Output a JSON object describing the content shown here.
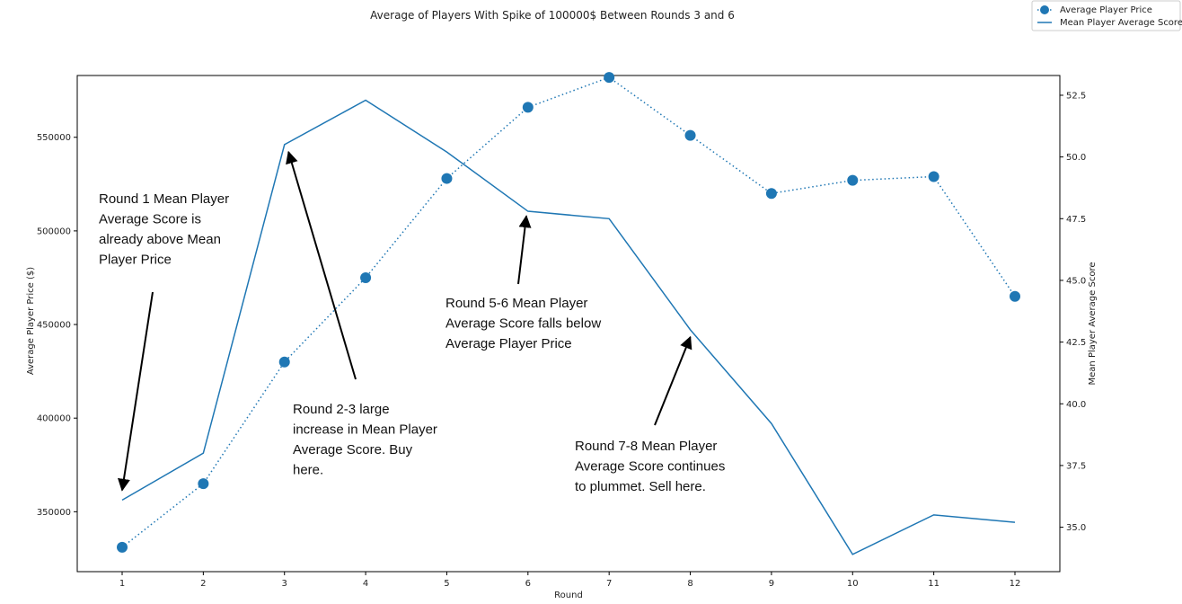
{
  "chart_data": {
    "type": "line",
    "title": "Average of Players With Spike of 100000$ Between Rounds 3 and 6",
    "xlabel": "Round",
    "ylabel_left": "Average Player Price ($)",
    "ylabel_right": "Mean Player Average Score",
    "x": [
      1,
      2,
      3,
      4,
      5,
      6,
      7,
      8,
      9,
      10,
      11,
      12
    ],
    "x_ticks": [
      "1",
      "2",
      "3",
      "4",
      "5",
      "6",
      "7",
      "8",
      "9",
      "10",
      "11",
      "12"
    ],
    "y_left_ticks": [
      "350000",
      "400000",
      "450000",
      "500000",
      "550000"
    ],
    "y_right_ticks": [
      "35.0",
      "37.5",
      "40.0",
      "42.5",
      "45.0",
      "47.5",
      "50.0",
      "52.5"
    ],
    "ylim_left": [
      318000,
      583000
    ],
    "ylim_right": [
      33.2,
      53.3
    ],
    "legend_position": "top-right",
    "colors": {
      "series": "#1f77b4"
    },
    "series": [
      {
        "name": "Average Player Price",
        "axis": "left",
        "style": "dotted-markers",
        "values": [
          331000,
          365000,
          430000,
          475000,
          528000,
          566000,
          582000,
          551000,
          520000,
          527000,
          529000,
          465000
        ]
      },
      {
        "name": "Mean Player Average Score",
        "axis": "right",
        "style": "solid-line",
        "values": [
          36.1,
          38.0,
          50.5,
          52.3,
          50.2,
          47.8,
          47.5,
          43.0,
          39.2,
          33.9,
          35.5,
          35.2
        ]
      }
    ],
    "annotations": [
      {
        "lines": [
          "Round 1 Mean Player",
          "Average Score is",
          "already above Mean",
          "Player Price"
        ],
        "arrow_x": 1,
        "arrow_y_right": 36.5
      },
      {
        "lines": [
          "Round 2-3 large",
          "increase in Mean Player",
          "Average Score. Buy",
          "here."
        ],
        "arrow_x": 3.05,
        "arrow_y_right": 50.2
      },
      {
        "lines": [
          "Round 5-6 Mean Player",
          "Average Score falls below",
          "Average Player Price"
        ],
        "arrow_x": 5.98,
        "arrow_y_right": 47.6
      },
      {
        "lines": [
          "Round 7-8 Mean Player",
          "Average Score continues",
          "to plummet. Sell here."
        ],
        "arrow_x": 8,
        "arrow_y_right": 42.7
      }
    ]
  }
}
